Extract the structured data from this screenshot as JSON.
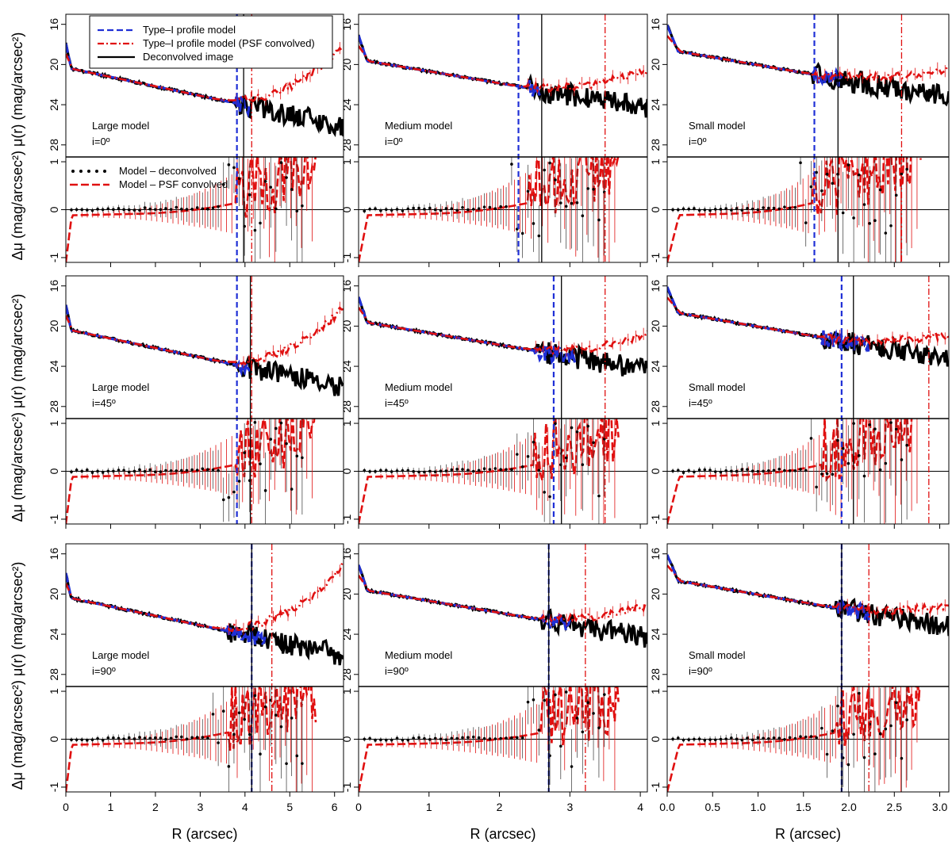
{
  "colors": {
    "model": "#1f2fd6",
    "psf": "#e01010",
    "deconvolved": "#000000",
    "residual_points": "#000000",
    "residual_psf": "#e01010"
  },
  "axes_text": {
    "xlabel": "R (arcsec)",
    "ylabel_top": "μ(r) (mag/arcsec²)",
    "ylabel_bottom": "Δμ (mag/arcsec²)",
    "ylabel_combined": "Δμ (mag/arcsec²)  μ(r) (mag/arcsec²)"
  },
  "legend_profiles": {
    "model": "Type–I profile model",
    "psf": "Type–I profile model (PSF convolved)",
    "deconvolved": "Deconvolved image"
  },
  "legend_residuals": {
    "points": "Model – deconvolved",
    "psf": "Model – PSF convolved"
  },
  "chart_data": [
    {
      "type": "line",
      "model": "Large model",
      "inclination": "i=0º",
      "xlim": [
        0,
        6.2
      ],
      "x_ticks": [
        0,
        1,
        2,
        3,
        4,
        5,
        6
      ],
      "ylim_profile": [
        29.2,
        15
      ],
      "y_ticks_profile": [
        16,
        20,
        24,
        28
      ],
      "ylim_residual": [
        -1.1,
        1.1
      ],
      "y_ticks_residual": [
        -1,
        0,
        1
      ],
      "mu0": 20.3,
      "h": 1.16,
      "noise_start": 3.8,
      "model_break": 3.82,
      "psf_break": 4.15,
      "data_break": 3.97
    },
    {
      "type": "line",
      "model": "Medium model",
      "inclination": "i=0º",
      "xlim": [
        0,
        4.1
      ],
      "x_ticks": [
        0,
        1,
        2,
        3,
        4
      ],
      "ylim_profile": [
        29.2,
        15
      ],
      "y_ticks_profile": [
        16,
        20,
        24,
        28
      ],
      "ylim_residual": [
        -1.1,
        1.1
      ],
      "y_ticks_residual": [
        -1,
        0,
        1
      ],
      "mu0": 19.5,
      "h": 0.92,
      "noise_start": 2.4,
      "model_break": 2.27,
      "psf_break": 3.5,
      "data_break": 2.6
    },
    {
      "type": "line",
      "model": "Small model",
      "inclination": "i=0º",
      "xlim": [
        0,
        3.1
      ],
      "x_ticks": [
        0,
        0.5,
        1.0,
        1.5,
        2.0,
        2.5,
        3.0
      ],
      "x_tick_labels": [
        "0.0",
        "0.5",
        "1.0",
        "1.5",
        "2.0",
        "2.5",
        "3.0"
      ],
      "ylim_profile": [
        29.2,
        15
      ],
      "y_ticks_profile": [
        16,
        20,
        24,
        28
      ],
      "ylim_residual": [
        -1.1,
        1.1
      ],
      "y_ticks_residual": [
        -1,
        0,
        1
      ],
      "mu0": 18.5,
      "h": 0.7,
      "noise_start": 1.6,
      "model_break": 1.62,
      "psf_break": 2.58,
      "data_break": 1.88
    },
    {
      "type": "line",
      "model": "Large model",
      "inclination": "i=45º",
      "xlim": [
        0,
        6.2
      ],
      "x_ticks": [
        0,
        1,
        2,
        3,
        4,
        5,
        6
      ],
      "ylim_profile": [
        29.2,
        15
      ],
      "y_ticks_profile": [
        16,
        20,
        24,
        28
      ],
      "ylim_residual": [
        -1.1,
        1.1
      ],
      "y_ticks_residual": [
        -1,
        0,
        1
      ],
      "mu0": 20.3,
      "h": 1.16,
      "noise_start": 3.8,
      "model_break": 3.82,
      "psf_break": 4.15,
      "data_break": 4.12
    },
    {
      "type": "line",
      "model": "Medium model",
      "inclination": "i=45º",
      "xlim": [
        0,
        4.1
      ],
      "x_ticks": [
        0,
        1,
        2,
        3,
        4
      ],
      "ylim_profile": [
        29.2,
        15
      ],
      "y_ticks_profile": [
        16,
        20,
        24,
        28
      ],
      "ylim_residual": [
        -1.1,
        1.1
      ],
      "y_ticks_residual": [
        -1,
        0,
        1
      ],
      "mu0": 19.5,
      "h": 0.92,
      "noise_start": 2.5,
      "model_break": 2.77,
      "psf_break": 3.5,
      "data_break": 2.88
    },
    {
      "type": "line",
      "model": "Small model",
      "inclination": "i=45º",
      "xlim": [
        0,
        3.1
      ],
      "x_ticks": [
        0,
        0.5,
        1.0,
        1.5,
        2.0,
        2.5,
        3.0
      ],
      "x_tick_labels": [
        "0.0",
        "0.5",
        "1.0",
        "1.5",
        "2.0",
        "2.5",
        "3.0"
      ],
      "ylim_profile": [
        29.2,
        15
      ],
      "y_ticks_profile": [
        16,
        20,
        24,
        28
      ],
      "ylim_residual": [
        -1.1,
        1.1
      ],
      "y_ticks_residual": [
        -1,
        0,
        1
      ],
      "mu0": 18.5,
      "h": 0.7,
      "noise_start": 1.7,
      "model_break": 1.92,
      "psf_break": 2.88,
      "data_break": 2.05
    },
    {
      "type": "line",
      "model": "Large model",
      "inclination": "i=90º",
      "xlim": [
        0,
        6.2
      ],
      "x_ticks": [
        0,
        1,
        2,
        3,
        4,
        5,
        6
      ],
      "ylim_profile": [
        29.2,
        15
      ],
      "y_ticks_profile": [
        16,
        20,
        24,
        28
      ],
      "ylim_residual": [
        -1.1,
        1.1
      ],
      "y_ticks_residual": [
        -1,
        0,
        1
      ],
      "mu0": 20.3,
      "h": 1.16,
      "noise_start": 3.6,
      "model_break": 4.15,
      "psf_break": 4.6,
      "data_break": 4.15
    },
    {
      "type": "line",
      "model": "Medium model",
      "inclination": "i=90º",
      "xlim": [
        0,
        4.1
      ],
      "x_ticks": [
        0,
        1,
        2,
        3,
        4
      ],
      "ylim_profile": [
        29.2,
        15
      ],
      "y_ticks_profile": [
        16,
        20,
        24,
        28
      ],
      "ylim_residual": [
        -1.1,
        1.1
      ],
      "y_ticks_residual": [
        -1,
        0,
        1
      ],
      "mu0": 19.5,
      "h": 0.92,
      "noise_start": 2.6,
      "model_break": 2.7,
      "psf_break": 3.22,
      "data_break": 2.7
    },
    {
      "type": "line",
      "model": "Small model",
      "inclination": "i=90º",
      "xlim": [
        0,
        3.1
      ],
      "x_ticks": [
        0,
        0.5,
        1.0,
        1.5,
        2.0,
        2.5,
        3.0
      ],
      "x_tick_labels": [
        "0.0",
        "0.5",
        "1.0",
        "1.5",
        "2.0",
        "2.5",
        "3.0"
      ],
      "ylim_profile": [
        29.2,
        15
      ],
      "y_ticks_profile": [
        16,
        20,
        24,
        28
      ],
      "ylim_residual": [
        -1.1,
        1.1
      ],
      "y_ticks_residual": [
        -1,
        0,
        1
      ],
      "mu0": 18.5,
      "h": 0.7,
      "noise_start": 1.85,
      "model_break": 1.92,
      "psf_break": 2.22,
      "data_break": 1.92
    }
  ]
}
